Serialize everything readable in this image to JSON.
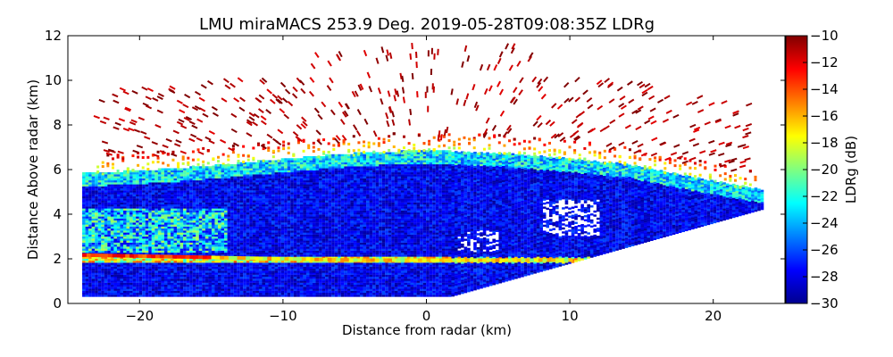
{
  "chart_data": {
    "type": "heatmap",
    "title": "LMU miraMACS 253.9 Deg. 2019-05-28T09:08:35Z  LDRg",
    "xlabel": "Distance from radar (km)",
    "ylabel": "Distance Above radar  (km)",
    "xlim": [
      -25,
      25
    ],
    "ylim": [
      0,
      12
    ],
    "xticks": [
      -20,
      -10,
      0,
      10,
      20
    ],
    "xtick_labels": [
      "−20",
      "−10",
      "0",
      "10",
      "20"
    ],
    "yticks": [
      0,
      2,
      4,
      6,
      8,
      10,
      12
    ],
    "ytick_labels": [
      "0",
      "2",
      "4",
      "6",
      "8",
      "10",
      "12"
    ],
    "colorbar": {
      "label": "LDRg (dB)",
      "range": [
        -30,
        -10
      ],
      "ticks": [
        -10,
        -12,
        -14,
        -16,
        -18,
        -20,
        -22,
        -24,
        -26,
        -28,
        -30
      ],
      "tick_labels": [
        "−10",
        "−12",
        "−14",
        "−16",
        "−18",
        "−20",
        "−22",
        "−24",
        "−26",
        "−28",
        "−30"
      ],
      "colormap": "jet"
    },
    "features": {
      "melting_layer_height_km": 1.9,
      "cloud_top_km": 6.5,
      "scan_left_edge_km": -24,
      "scan_right_edge_km": 23.5
    },
    "grid": false,
    "legend": "none"
  }
}
